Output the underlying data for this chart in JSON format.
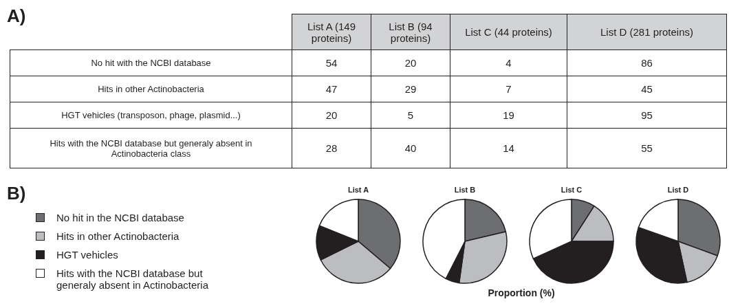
{
  "chart_data": [
    {
      "type": "other",
      "title": "A)",
      "data_labels": true,
      "categories": [
        "No hit with the NCBI database",
        "Hits in other Actinobacteria",
        "HGT vehicles (transposon, phage, plasmid...)",
        "Hits with the NCBI database but generaly absent in Actinobacteria class"
      ],
      "series": [
        {
          "name": "List A (149 proteins)",
          "values": [
            54,
            47,
            20,
            28
          ]
        },
        {
          "name": "List B (94 proteins)",
          "values": [
            20,
            29,
            5,
            40
          ]
        },
        {
          "name": "List C (44 proteins)",
          "values": [
            4,
            7,
            19,
            14
          ]
        },
        {
          "name": "List D (281 proteins)",
          "values": [
            86,
            45,
            95,
            55
          ]
        }
      ]
    },
    {
      "type": "pie",
      "title": "List A",
      "categories": [
        "No hit in the NCBI database",
        "Hits in other Actinobacteria",
        "HGT vehicles",
        "Hits with the NCBI database but generaly absent in Actinobacteria"
      ],
      "values": [
        36.2,
        31.5,
        13.4,
        18.9
      ],
      "colors": [
        "#6d6e71",
        "#bcbdc0",
        "#231f20",
        "#ffffff"
      ],
      "legend": "left",
      "annotations": [
        "B)",
        "Proportion (%)"
      ]
    },
    {
      "type": "pie",
      "title": "List B",
      "categories": [
        null,
        null,
        null,
        null
      ],
      "values": [
        21.3,
        30.9,
        5.3,
        42.5
      ],
      "colors": [
        "#6d6e71",
        "#bcbdc0",
        "#231f20",
        "#ffffff"
      ]
    },
    {
      "type": "pie",
      "title": "List C",
      "categories": [
        null,
        null,
        null,
        null
      ],
      "values": [
        9.1,
        15.9,
        43.2,
        31.8
      ],
      "colors": [
        "#6d6e71",
        "#bcbdc0",
        "#231f20",
        "#ffffff"
      ]
    },
    {
      "type": "pie",
      "title": "List D",
      "categories": [
        null,
        null,
        null,
        null
      ],
      "values": [
        30.6,
        16.0,
        33.8,
        19.6
      ],
      "colors": [
        "#6d6e71",
        "#bcbdc0",
        "#231f20",
        "#ffffff"
      ]
    }
  ]
}
